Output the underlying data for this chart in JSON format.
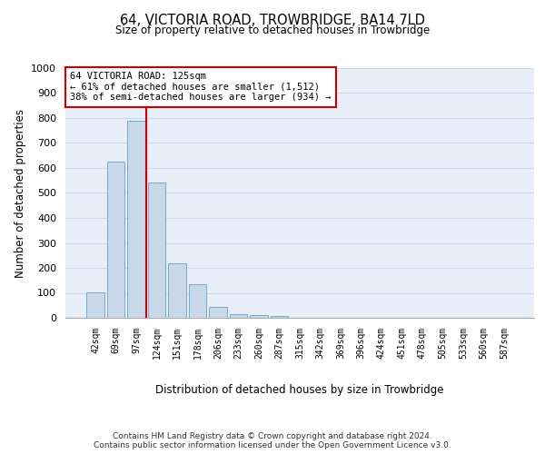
{
  "title": "64, VICTORIA ROAD, TROWBRIDGE, BA14 7LD",
  "subtitle": "Size of property relative to detached houses in Trowbridge",
  "xlabel": "Distribution of detached houses by size in Trowbridge",
  "ylabel": "Number of detached properties",
  "bar_labels": [
    "42sqm",
    "69sqm",
    "97sqm",
    "124sqm",
    "151sqm",
    "178sqm",
    "206sqm",
    "233sqm",
    "260sqm",
    "287sqm",
    "315sqm",
    "342sqm",
    "369sqm",
    "396sqm",
    "424sqm",
    "451sqm",
    "478sqm",
    "505sqm",
    "533sqm",
    "560sqm",
    "587sqm"
  ],
  "bar_values": [
    103,
    625,
    790,
    540,
    220,
    135,
    43,
    15,
    10,
    8,
    0,
    0,
    0,
    0,
    0,
    0,
    0,
    0,
    0,
    0,
    0
  ],
  "bar_color": "#c8d8e8",
  "bar_edgecolor": "#7aaac8",
  "highlight_bar_index": 3,
  "highlight_color": "#cc0000",
  "annotation_text": "64 VICTORIA ROAD: 125sqm\n← 61% of detached houses are smaller (1,512)\n38% of semi-detached houses are larger (934) →",
  "annotation_box_color": "#ffffff",
  "annotation_box_edgecolor": "#cc0000",
  "ylim": [
    0,
    1000
  ],
  "yticks": [
    0,
    100,
    200,
    300,
    400,
    500,
    600,
    700,
    800,
    900,
    1000
  ],
  "grid_color": "#d0d8e8",
  "bg_color": "#e8eef8",
  "footer": "Contains HM Land Registry data © Crown copyright and database right 2024.\nContains public sector information licensed under the Open Government Licence v3.0."
}
